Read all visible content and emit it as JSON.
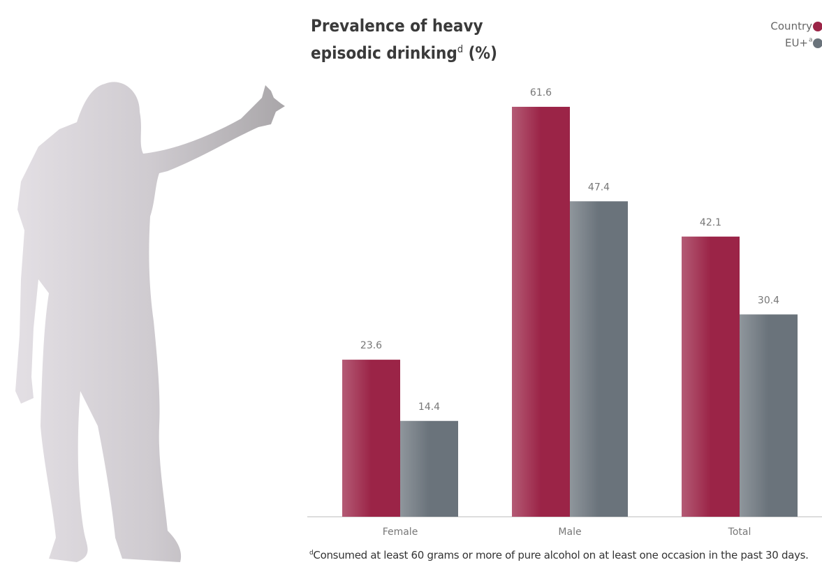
{
  "chart_data": {
    "type": "bar",
    "title": "Prevalence of heavy episodic drinking",
    "title_note_mark": "d",
    "title_unit": "(%)",
    "categories": [
      "Female",
      "Male",
      "Total"
    ],
    "series": [
      {
        "name": "Country",
        "color": "#9b2447",
        "values": [
          23.6,
          61.6,
          42.1
        ]
      },
      {
        "name": "EU+",
        "color": "#6a737b",
        "values": [
          14.4,
          47.4,
          30.4
        ]
      }
    ],
    "legend_note_mark": "a",
    "legend": "top-right",
    "footnote_mark": "d",
    "footnote": "Consumed at least 60 grams or more of pure alcohol on at least one occasion in the past 30 days."
  }
}
